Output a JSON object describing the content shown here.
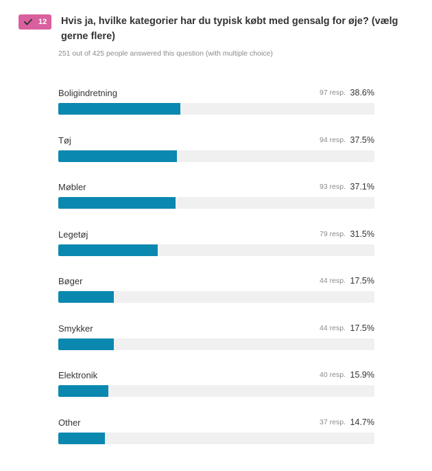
{
  "question": {
    "number": "12",
    "check_icon": "check-icon",
    "badge_color": "#d9609e",
    "title": "Hvis ja, hvilke kategorier har du typisk købt med gensalg for øje? (vælg gerne flere)",
    "subtitle": "251 out of 425 people answered this question (with multiple choice)"
  },
  "chart_data": {
    "type": "bar",
    "orientation": "horizontal",
    "bar_color": "#0a88b0",
    "track_color": "#f0f0f0",
    "categories": [
      "Boligindretning",
      "Tøj",
      "Møbler",
      "Legetøj",
      "Bøger",
      "Smykker",
      "Elektronik",
      "Other"
    ],
    "responses": [
      "97 resp.",
      "94 resp.",
      "93 resp.",
      "79 resp.",
      "44 resp.",
      "44 resp.",
      "40 resp.",
      "37 resp."
    ],
    "percent_labels": [
      "38.6%",
      "37.5%",
      "37.1%",
      "31.5%",
      "17.5%",
      "17.5%",
      "15.9%",
      "14.7%"
    ],
    "values": [
      38.6,
      37.5,
      37.1,
      31.5,
      17.5,
      17.5,
      15.9,
      14.7
    ],
    "xlim": [
      0,
      100
    ]
  }
}
